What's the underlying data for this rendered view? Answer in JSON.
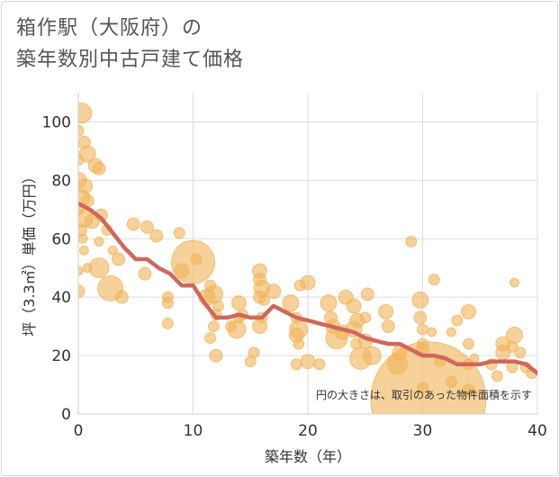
{
  "title_line1": "箱作駅（大阪府）の",
  "title_line2": "築年数別中古戸建て価格",
  "colors": {
    "bubble": "#f0b45a",
    "line": "#d0675a",
    "grid": "#dddddd"
  },
  "chart_data": {
    "type": "scatter",
    "xlabel": "築年数（年）",
    "ylabel": "坪（3.3㎡）単価（万円）",
    "xlim": [
      0,
      40
    ],
    "ylim": [
      0,
      110
    ],
    "xticks": [
      "0",
      "10",
      "20",
      "30",
      "40"
    ],
    "yticks": [
      "0",
      "20",
      "40",
      "60",
      "80",
      "100"
    ],
    "grid": true,
    "note": "円の大きさは、取引のあった物件面積を示す",
    "points": [
      {
        "x": 0.3,
        "y": 103,
        "s": 11
      },
      {
        "x": 0,
        "y": 97,
        "s": 6
      },
      {
        "x": 0.5,
        "y": 93,
        "s": 7
      },
      {
        "x": 0.8,
        "y": 89,
        "s": 9
      },
      {
        "x": 0,
        "y": 87,
        "s": 6
      },
      {
        "x": 1.5,
        "y": 85,
        "s": 8
      },
      {
        "x": 1.8,
        "y": 84,
        "s": 7
      },
      {
        "x": 0,
        "y": 80,
        "s": 9
      },
      {
        "x": 0.6,
        "y": 78,
        "s": 8
      },
      {
        "x": 0.3,
        "y": 74,
        "s": 9
      },
      {
        "x": 0.8,
        "y": 73,
        "s": 7
      },
      {
        "x": 0,
        "y": 70,
        "s": 6
      },
      {
        "x": 0.5,
        "y": 67,
        "s": 10
      },
      {
        "x": 1.2,
        "y": 66,
        "s": 8
      },
      {
        "x": 2.0,
        "y": 68,
        "s": 7
      },
      {
        "x": 2.5,
        "y": 63,
        "s": 6
      },
      {
        "x": 0.2,
        "y": 63,
        "s": 7
      },
      {
        "x": 0.4,
        "y": 60,
        "s": 5
      },
      {
        "x": 1.8,
        "y": 59,
        "s": 5
      },
      {
        "x": 3.0,
        "y": 56,
        "s": 5
      },
      {
        "x": 0.5,
        "y": 56,
        "s": 5
      },
      {
        "x": 0,
        "y": 49,
        "s": 5
      },
      {
        "x": 0.8,
        "y": 50,
        "s": 5
      },
      {
        "x": 1.8,
        "y": 50,
        "s": 11
      },
      {
        "x": 3.5,
        "y": 53,
        "s": 7
      },
      {
        "x": 0,
        "y": 42,
        "s": 7
      },
      {
        "x": 2.8,
        "y": 43,
        "s": 14
      },
      {
        "x": 3.8,
        "y": 40,
        "s": 7
      },
      {
        "x": 4.8,
        "y": 65,
        "s": 7
      },
      {
        "x": 6.0,
        "y": 64,
        "s": 7
      },
      {
        "x": 6.8,
        "y": 61,
        "s": 7
      },
      {
        "x": 5.8,
        "y": 48,
        "s": 7
      },
      {
        "x": 7.8,
        "y": 40,
        "s": 6
      },
      {
        "x": 7.8,
        "y": 38,
        "s": 6
      },
      {
        "x": 7.8,
        "y": 31,
        "s": 6
      },
      {
        "x": 8.8,
        "y": 62,
        "s": 6
      },
      {
        "x": 9.0,
        "y": 49,
        "s": 8
      },
      {
        "x": 10.0,
        "y": 52,
        "s": 24
      },
      {
        "x": 10.3,
        "y": 53,
        "s": 6
      },
      {
        "x": 11.5,
        "y": 44,
        "s": 6
      },
      {
        "x": 11.2,
        "y": 40,
        "s": 9
      },
      {
        "x": 11.8,
        "y": 41,
        "s": 10
      },
      {
        "x": 12.2,
        "y": 37,
        "s": 6
      },
      {
        "x": 12.0,
        "y": 34,
        "s": 6
      },
      {
        "x": 11.8,
        "y": 30,
        "s": 6
      },
      {
        "x": 11.5,
        "y": 26,
        "s": 6
      },
      {
        "x": 12.0,
        "y": 20,
        "s": 7
      },
      {
        "x": 13.3,
        "y": 30,
        "s": 6
      },
      {
        "x": 13.8,
        "y": 29,
        "s": 10
      },
      {
        "x": 14.0,
        "y": 33,
        "s": 6
      },
      {
        "x": 14.0,
        "y": 38,
        "s": 8
      },
      {
        "x": 14.3,
        "y": 34,
        "s": 6
      },
      {
        "x": 15.8,
        "y": 49,
        "s": 8
      },
      {
        "x": 15.8,
        "y": 46,
        "s": 7
      },
      {
        "x": 16.0,
        "y": 43,
        "s": 9
      },
      {
        "x": 15.8,
        "y": 40,
        "s": 7
      },
      {
        "x": 16.2,
        "y": 39,
        "s": 6
      },
      {
        "x": 16.0,
        "y": 33,
        "s": 6
      },
      {
        "x": 15.8,
        "y": 30,
        "s": 8
      },
      {
        "x": 15.3,
        "y": 21,
        "s": 6
      },
      {
        "x": 15.0,
        "y": 18,
        "s": 6
      },
      {
        "x": 17.0,
        "y": 42,
        "s": 8
      },
      {
        "x": 18.5,
        "y": 38,
        "s": 9
      },
      {
        "x": 19.0,
        "y": 33,
        "s": 6
      },
      {
        "x": 19.2,
        "y": 29,
        "s": 10
      },
      {
        "x": 19.0,
        "y": 27,
        "s": 8
      },
      {
        "x": 19.2,
        "y": 24,
        "s": 6
      },
      {
        "x": 19.0,
        "y": 17,
        "s": 6
      },
      {
        "x": 19.3,
        "y": 44,
        "s": 6
      },
      {
        "x": 20.0,
        "y": 45,
        "s": 8
      },
      {
        "x": 20.0,
        "y": 18,
        "s": 8
      },
      {
        "x": 21.0,
        "y": 17,
        "s": 6
      },
      {
        "x": 21.8,
        "y": 38,
        "s": 9
      },
      {
        "x": 22.0,
        "y": 33,
        "s": 7
      },
      {
        "x": 22.2,
        "y": 30,
        "s": 8
      },
      {
        "x": 22.5,
        "y": 26,
        "s": 12
      },
      {
        "x": 23.0,
        "y": 28,
        "s": 8
      },
      {
        "x": 23.3,
        "y": 40,
        "s": 8
      },
      {
        "x": 24.0,
        "y": 37,
        "s": 8
      },
      {
        "x": 24.3,
        "y": 32,
        "s": 8
      },
      {
        "x": 24.0,
        "y": 29,
        "s": 9
      },
      {
        "x": 24.2,
        "y": 24,
        "s": 6
      },
      {
        "x": 24.6,
        "y": 19,
        "s": 12
      },
      {
        "x": 25.0,
        "y": 33,
        "s": 6
      },
      {
        "x": 25.2,
        "y": 41,
        "s": 7
      },
      {
        "x": 25.0,
        "y": 25,
        "s": 8
      },
      {
        "x": 25.6,
        "y": 20,
        "s": 10
      },
      {
        "x": 26.8,
        "y": 35,
        "s": 8
      },
      {
        "x": 27.0,
        "y": 30,
        "s": 7
      },
      {
        "x": 27.8,
        "y": 17,
        "s": 11
      },
      {
        "x": 28.0,
        "y": 21,
        "s": 8
      },
      {
        "x": 29.0,
        "y": 59,
        "s": 6
      },
      {
        "x": 29.8,
        "y": 39,
        "s": 9
      },
      {
        "x": 29.8,
        "y": 33,
        "s": 7
      },
      {
        "x": 30.0,
        "y": 29,
        "s": 6
      },
      {
        "x": 30.8,
        "y": 28,
        "s": 5
      },
      {
        "x": 30.0,
        "y": 24,
        "s": 6
      },
      {
        "x": 30.0,
        "y": 22,
        "s": 7
      },
      {
        "x": 30.0,
        "y": 9,
        "s": 6
      },
      {
        "x": 31.0,
        "y": 46,
        "s": 6
      },
      {
        "x": 30.5,
        "y": 5,
        "s": 64
      },
      {
        "x": 31.5,
        "y": 18,
        "s": 6
      },
      {
        "x": 32.5,
        "y": 11,
        "s": 6
      },
      {
        "x": 32.5,
        "y": 28,
        "s": 5
      },
      {
        "x": 33.0,
        "y": 32,
        "s": 6
      },
      {
        "x": 34.0,
        "y": 35,
        "s": 8
      },
      {
        "x": 34.0,
        "y": 24,
        "s": 6
      },
      {
        "x": 34.0,
        "y": 17,
        "s": 6
      },
      {
        "x": 34.0,
        "y": 8,
        "s": 7
      },
      {
        "x": 34.5,
        "y": 19,
        "s": 5
      },
      {
        "x": 36.0,
        "y": 17,
        "s": 6
      },
      {
        "x": 36.5,
        "y": 13,
        "s": 6
      },
      {
        "x": 37.0,
        "y": 24,
        "s": 8
      },
      {
        "x": 37.0,
        "y": 21,
        "s": 8
      },
      {
        "x": 37.8,
        "y": 23,
        "s": 6
      },
      {
        "x": 37.8,
        "y": 16,
        "s": 6
      },
      {
        "x": 38.0,
        "y": 27,
        "s": 9
      },
      {
        "x": 38.0,
        "y": 45,
        "s": 5
      },
      {
        "x": 38.5,
        "y": 21,
        "s": 6
      },
      {
        "x": 39.0,
        "y": 16,
        "s": 6
      },
      {
        "x": 39.5,
        "y": 14,
        "s": 6
      }
    ],
    "trend": [
      [
        0,
        72
      ],
      [
        1,
        70
      ],
      [
        2,
        67
      ],
      [
        3,
        62
      ],
      [
        4,
        57
      ],
      [
        5,
        53
      ],
      [
        6,
        53
      ],
      [
        7,
        50
      ],
      [
        8,
        48
      ],
      [
        9,
        44
      ],
      [
        10,
        44
      ],
      [
        11,
        38
      ],
      [
        12,
        33
      ],
      [
        13,
        33
      ],
      [
        14,
        34
      ],
      [
        15,
        33
      ],
      [
        16,
        33
      ],
      [
        17,
        37
      ],
      [
        18,
        35
      ],
      [
        19,
        33
      ],
      [
        20,
        32
      ],
      [
        21,
        31
      ],
      [
        22,
        30
      ],
      [
        23,
        29
      ],
      [
        24,
        28
      ],
      [
        25,
        26
      ],
      [
        26,
        25
      ],
      [
        27,
        24
      ],
      [
        28,
        24
      ],
      [
        29,
        22
      ],
      [
        30,
        20
      ],
      [
        31,
        20
      ],
      [
        32,
        19
      ],
      [
        33,
        17
      ],
      [
        34,
        17
      ],
      [
        35,
        17
      ],
      [
        36,
        18
      ],
      [
        37,
        18
      ],
      [
        38,
        18
      ],
      [
        39,
        17
      ],
      [
        40,
        14
      ]
    ]
  }
}
